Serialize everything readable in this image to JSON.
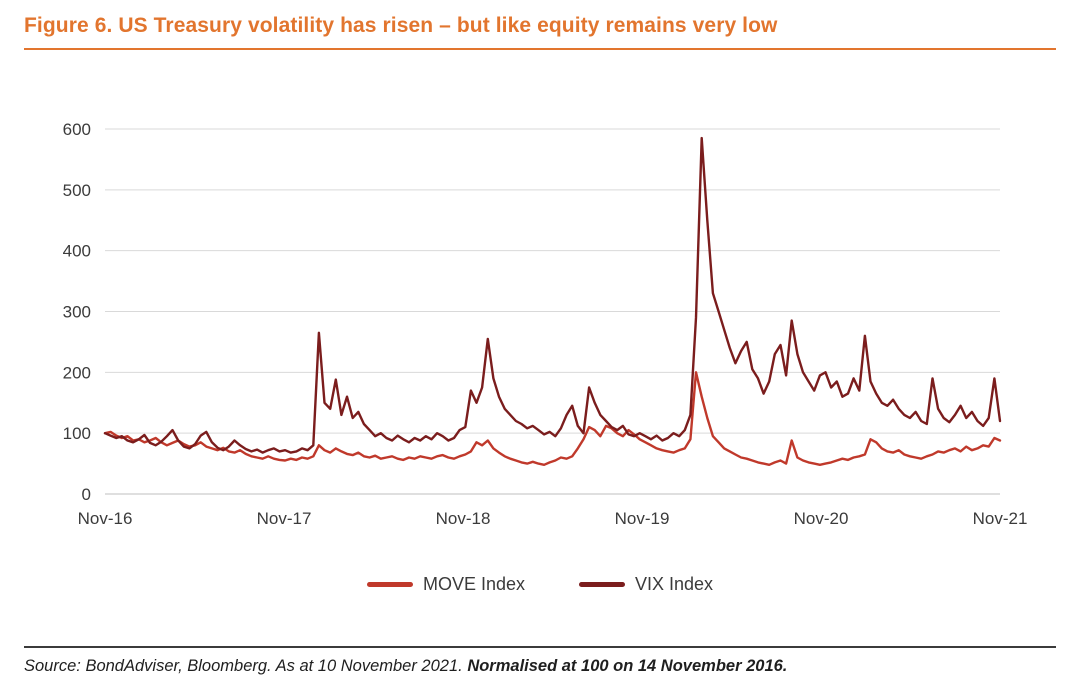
{
  "header": {
    "title": "Figure 6. US Treasury volatility has risen – but like equity remains very low",
    "accent_color": "#E2752E"
  },
  "chart_data": {
    "type": "line",
    "title": "",
    "xlabel": "",
    "ylabel": "",
    "ylim": [
      0,
      600
    ],
    "y_ticks": [
      0,
      100,
      200,
      300,
      400,
      500,
      600
    ],
    "x_tick_labels": [
      "Nov-16",
      "Nov-17",
      "Nov-18",
      "Nov-19",
      "Nov-20",
      "Nov-21"
    ],
    "grid": "horizontal",
    "gridline_color": "#d9d9d9",
    "axis_color": "#bfbfbf",
    "tick_label_color": "#3b3b3b",
    "legend_position": "bottom",
    "series": [
      {
        "name": "MOVE Index",
        "color": "#C0392B",
        "values": [
          100,
          102,
          96,
          92,
          95,
          88,
          90,
          85,
          88,
          92,
          85,
          80,
          84,
          88,
          82,
          78,
          80,
          85,
          78,
          75,
          72,
          76,
          70,
          68,
          72,
          66,
          62,
          60,
          58,
          62,
          58,
          56,
          55,
          58,
          56,
          60,
          58,
          62,
          80,
          72,
          68,
          75,
          70,
          66,
          64,
          68,
          62,
          60,
          63,
          58,
          60,
          62,
          58,
          56,
          60,
          58,
          62,
          60,
          58,
          62,
          64,
          60,
          58,
          62,
          65,
          70,
          85,
          80,
          88,
          75,
          68,
          62,
          58,
          55,
          52,
          50,
          53,
          50,
          48,
          52,
          55,
          60,
          58,
          62,
          75,
          90,
          110,
          105,
          95,
          112,
          108,
          100,
          95,
          105,
          98,
          90,
          85,
          80,
          75,
          72,
          70,
          68,
          72,
          75,
          90,
          200,
          160,
          125,
          95,
          85,
          75,
          70,
          65,
          60,
          58,
          55,
          52,
          50,
          48,
          52,
          55,
          50,
          88,
          60,
          55,
          52,
          50,
          48,
          50,
          52,
          55,
          58,
          56,
          60,
          62,
          65,
          90,
          85,
          75,
          70,
          68,
          72,
          65,
          62,
          60,
          58,
          62,
          65,
          70,
          68,
          72,
          75,
          70,
          78,
          72,
          75,
          80,
          78,
          92,
          88
        ]
      },
      {
        "name": "VIX Index",
        "color": "#7B1D1D",
        "values": [
          100,
          96,
          92,
          95,
          88,
          85,
          90,
          97,
          84,
          80,
          86,
          95,
          105,
          88,
          78,
          75,
          82,
          96,
          102,
          85,
          76,
          72,
          78,
          88,
          80,
          74,
          70,
          73,
          68,
          72,
          75,
          70,
          72,
          68,
          70,
          75,
          72,
          80,
          265,
          150,
          140,
          188,
          130,
          160,
          125,
          135,
          115,
          105,
          95,
          100,
          92,
          88,
          96,
          90,
          85,
          92,
          88,
          95,
          90,
          100,
          95,
          88,
          92,
          105,
          110,
          170,
          150,
          175,
          255,
          190,
          160,
          140,
          130,
          120,
          115,
          108,
          112,
          105,
          98,
          102,
          95,
          108,
          130,
          145,
          112,
          100,
          175,
          150,
          130,
          120,
          110,
          105,
          112,
          98,
          95,
          100,
          95,
          90,
          96,
          88,
          92,
          100,
          95,
          105,
          130,
          290,
          585,
          450,
          330,
          300,
          270,
          240,
          215,
          235,
          250,
          205,
          190,
          165,
          185,
          230,
          245,
          195,
          285,
          230,
          200,
          185,
          170,
          195,
          200,
          175,
          185,
          160,
          165,
          190,
          170,
          260,
          185,
          165,
          150,
          145,
          155,
          140,
          130,
          125,
          135,
          120,
          115,
          190,
          140,
          125,
          118,
          130,
          145,
          125,
          135,
          120,
          112,
          125,
          190,
          120
        ]
      }
    ]
  },
  "footer": {
    "source_regular": "Source: BondAdviser, Bloomberg. As at 10 November 2021. ",
    "source_bold": "Normalised at 100 on 14 November 2016."
  }
}
